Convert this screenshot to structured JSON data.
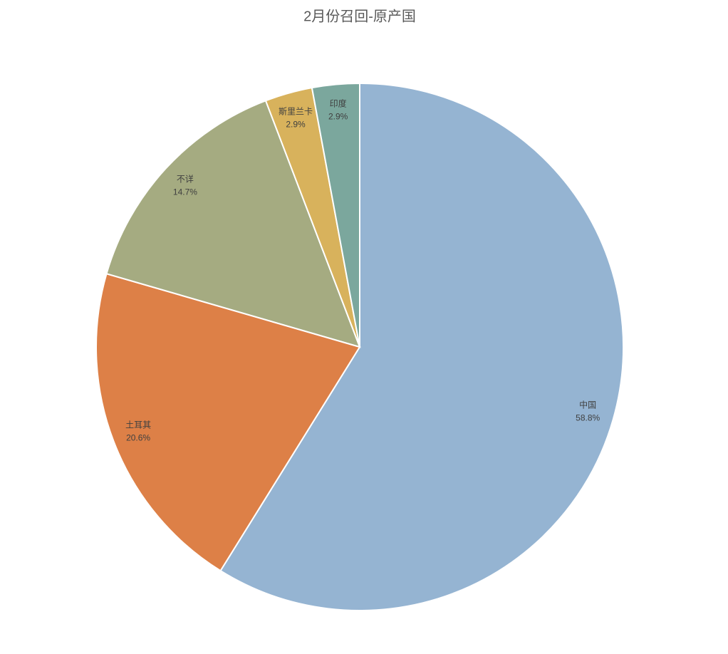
{
  "chart_data": {
    "type": "pie",
    "title": "2月份召回-原产国",
    "categories": [
      "中国",
      "土耳其",
      "不详",
      "斯里兰卡",
      "印度"
    ],
    "values": [
      58.8,
      20.6,
      14.7,
      2.9,
      2.9
    ],
    "value_labels": [
      "58.8%",
      "20.6%",
      "14.7%",
      "2.9%",
      "2.9%"
    ],
    "colors": [
      "#95b4d2",
      "#dd8047",
      "#a5ab81",
      "#d8b25c",
      "#7ba79d"
    ]
  }
}
